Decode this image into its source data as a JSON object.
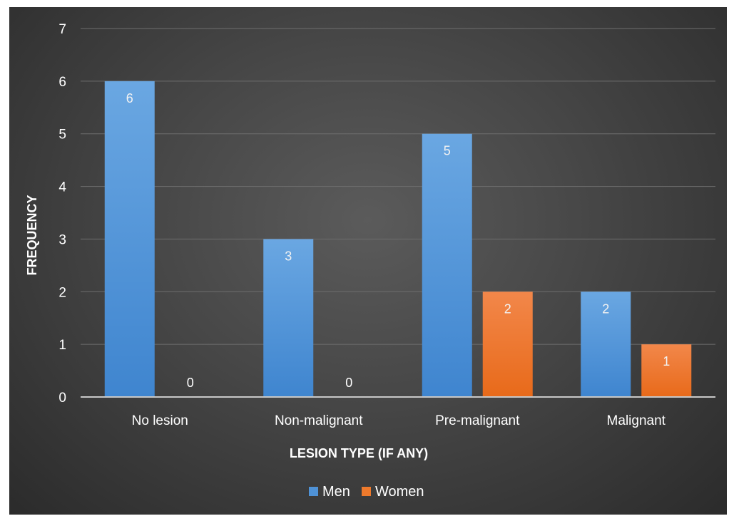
{
  "chart_data": {
    "type": "bar",
    "categories": [
      "No lesion",
      "Non-malignant",
      "Pre-malignant",
      "Malignant"
    ],
    "series": [
      {
        "name": "Men",
        "values": [
          6,
          3,
          5,
          2
        ],
        "color": "#4f92d6"
      },
      {
        "name": "Women",
        "values": [
          0,
          0,
          2,
          1
        ],
        "color": "#ee7a2c"
      }
    ],
    "xlabel": "LESION TYPE (IF ANY)",
    "ylabel": "FREQUENCY",
    "ylim": [
      0,
      7
    ],
    "yticks": [
      "0",
      "1",
      "2",
      "3",
      "4",
      "5",
      "6",
      "7"
    ],
    "data_labels": true,
    "grid": true,
    "legend_position": "bottom"
  }
}
